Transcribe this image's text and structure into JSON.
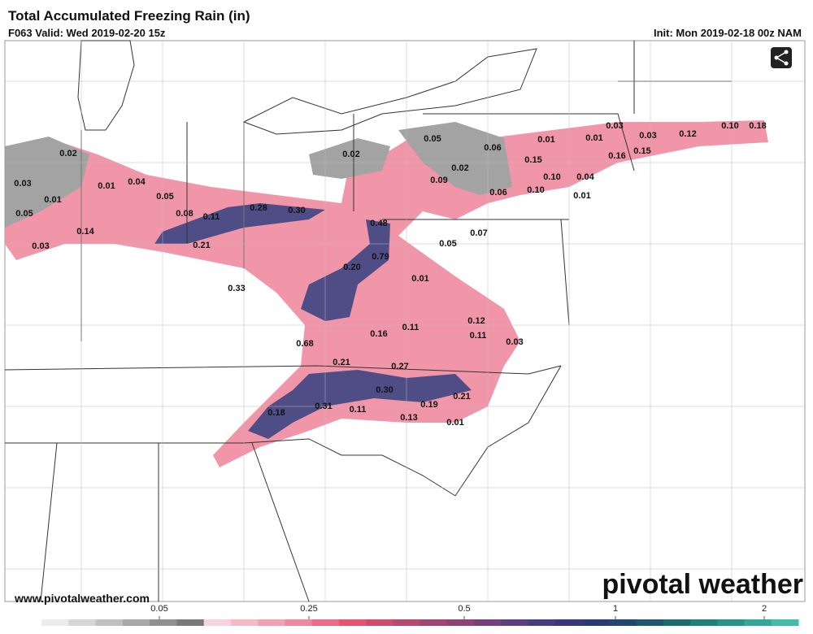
{
  "header": {
    "title": "Total Accumulated Freezing Rain (in)",
    "valid": "F063 Valid: Wed 2019-02-20 15z",
    "init": "Init: Mon 2019-02-18 00z NAM"
  },
  "map": {
    "labels": [
      "0.02",
      "0.03",
      "0.01",
      "0.05",
      "0.03",
      "0.14",
      "0.01",
      "0.04",
      "0.05",
      "0.08",
      "0.11",
      "0.28",
      "0.30",
      "0.21",
      "0.33",
      "0.02",
      "0.05",
      "0.02",
      "0.09",
      "0.06",
      "0.06",
      "0.15",
      "0.10",
      "0.10",
      "0.01",
      "0.01",
      "0.03",
      "0.03",
      "0.12",
      "0.10",
      "0.18",
      "0.16",
      "0.15",
      "0.04",
      "0.01",
      "0.48",
      "0.79",
      "0.20",
      "0.05",
      "0.07",
      "0.01",
      "0.68",
      "0.16",
      "0.11",
      "0.12",
      "0.11",
      "0.03",
      "0.21",
      "0.27",
      "0.30",
      "0.21",
      "0.19",
      "0.31",
      "0.11",
      "0.13",
      "0.01",
      "0.18"
    ]
  },
  "footer": {
    "website": "www.pivotalweather.com",
    "brand": "pivotal weather"
  },
  "colorbar": {
    "colors": [
      "#ffffff",
      "#ebebeb",
      "#d6d6d6",
      "#c0c0c0",
      "#a8a8a8",
      "#909090",
      "#787878",
      "#f7d3dc",
      "#f5bac8",
      "#f2a0b3",
      "#ef879e",
      "#ec6d88",
      "#e45570",
      "#cf4d6b",
      "#b8496e",
      "#a14672",
      "#8a4476",
      "#73427a",
      "#5c3f7c",
      "#483c7c",
      "#37397a",
      "#2a3a72",
      "#22466e",
      "#1f586e",
      "#1d6b72",
      "#1f7f7e",
      "#27938c",
      "#33a79a",
      "#44baa9"
    ],
    "ticks": [
      0.05,
      0.25,
      0.5,
      1,
      2
    ]
  }
}
